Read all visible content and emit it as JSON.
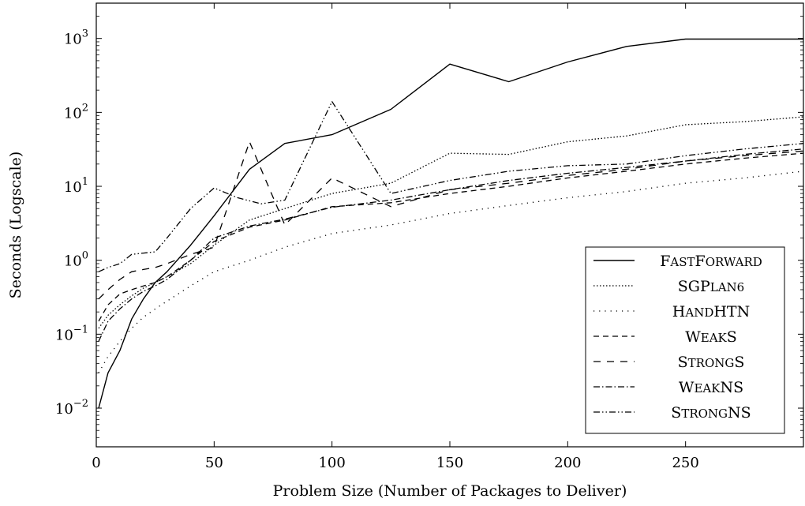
{
  "chart_data": {
    "type": "line",
    "title": "",
    "xlabel": "Problem Size (Number of Packages to Deliver)",
    "ylabel": "Seconds (Logscale)",
    "xlim": [
      0,
      300
    ],
    "ylim": [
      0.003,
      3000
    ],
    "yscale": "log",
    "grid": false,
    "legend_position": "bottom-right",
    "x_ticks": [
      0,
      50,
      100,
      150,
      200,
      250
    ],
    "x_tick_labels": [
      "0",
      "50",
      "100",
      "150",
      "200",
      "250"
    ],
    "y_ticks": [
      0.01,
      0.1,
      1,
      10,
      100,
      1000
    ],
    "y_tick_labels": [
      {
        "base": "10",
        "exp": "−2"
      },
      {
        "base": "10",
        "exp": "−1"
      },
      {
        "base": "10",
        "exp": "0"
      },
      {
        "base": "10",
        "exp": "1"
      },
      {
        "base": "10",
        "exp": "2"
      },
      {
        "base": "10",
        "exp": "3"
      }
    ],
    "series": [
      {
        "name": "FastForward",
        "dash": "",
        "width": 1.4,
        "x": [
          1,
          5,
          10,
          15,
          20,
          25,
          30,
          40,
          50,
          65,
          80,
          100,
          125,
          150,
          175,
          200,
          225,
          250,
          275,
          300
        ],
        "y": [
          0.01,
          0.03,
          0.06,
          0.16,
          0.3,
          0.5,
          0.7,
          1.6,
          4,
          17,
          38,
          50,
          110,
          450,
          260,
          480,
          780,
          980,
          980,
          980
        ]
      },
      {
        "name": "SGPlan6",
        "dash": "1.5,2.5",
        "width": 1.3,
        "x": [
          1,
          5,
          10,
          15,
          20,
          25,
          30,
          40,
          50,
          65,
          80,
          100,
          125,
          150,
          175,
          200,
          225,
          250,
          275,
          300
        ],
        "y": [
          0.12,
          0.18,
          0.25,
          0.33,
          0.42,
          0.5,
          0.6,
          0.9,
          1.6,
          3.5,
          5,
          8,
          11,
          28,
          27,
          40,
          48,
          68,
          75,
          87
        ]
      },
      {
        "name": "HandHTN",
        "dash": "1.2,6",
        "width": 1.3,
        "x": [
          1,
          5,
          10,
          15,
          20,
          25,
          30,
          40,
          50,
          65,
          80,
          100,
          125,
          150,
          175,
          200,
          225,
          250,
          275,
          300
        ],
        "y": [
          0.03,
          0.05,
          0.08,
          0.12,
          0.17,
          0.22,
          0.28,
          0.45,
          0.7,
          1.0,
          1.5,
          2.3,
          3,
          4.3,
          5.5,
          7,
          8.5,
          11,
          13,
          16
        ]
      },
      {
        "name": "WeakS",
        "dash": "7,5",
        "width": 1.3,
        "x": [
          1,
          5,
          10,
          15,
          20,
          25,
          30,
          40,
          50,
          65,
          80,
          100,
          125,
          150,
          175,
          200,
          225,
          250,
          275,
          300
        ],
        "y": [
          0.15,
          0.25,
          0.35,
          0.4,
          0.45,
          0.5,
          0.6,
          1.0,
          1.8,
          2.8,
          3.5,
          5.3,
          6,
          8,
          10,
          13,
          16,
          20,
          24,
          28
        ]
      },
      {
        "name": "StrongS",
        "dash": "9,8",
        "width": 1.3,
        "x": [
          1,
          5,
          10,
          15,
          20,
          25,
          30,
          40,
          50,
          65,
          80,
          100,
          125,
          150,
          175,
          200,
          225,
          250,
          275,
          300
        ],
        "y": [
          0.3,
          0.4,
          0.55,
          0.7,
          0.75,
          0.8,
          0.9,
          1.2,
          1.5,
          40,
          3,
          13,
          5.3,
          9,
          11,
          14,
          17,
          22,
          26,
          30
        ]
      },
      {
        "name": "WeakNS",
        "dash": "8,3,1.5,3",
        "width": 1.3,
        "x": [
          1,
          5,
          10,
          15,
          20,
          25,
          30,
          40,
          50,
          65,
          80,
          100,
          125,
          150,
          175,
          200,
          225,
          250,
          275,
          300
        ],
        "y": [
          0.08,
          0.15,
          0.22,
          0.3,
          0.38,
          0.45,
          0.55,
          1.0,
          2.0,
          2.9,
          3.6,
          5.2,
          6.5,
          9,
          12,
          15,
          18,
          22,
          27,
          32
        ]
      },
      {
        "name": "StrongNS",
        "dash": "8,3,1.5,3,1.5,3",
        "width": 1.3,
        "x": [
          1,
          5,
          10,
          15,
          20,
          25,
          30,
          40,
          50,
          60,
          70,
          80,
          100,
          125,
          150,
          175,
          200,
          225,
          250,
          275,
          300
        ],
        "y": [
          0.7,
          0.8,
          0.9,
          1.2,
          1.25,
          1.3,
          2,
          5,
          9.5,
          7,
          5.8,
          6.5,
          140,
          8,
          12,
          16,
          19,
          20,
          26,
          32,
          38
        ]
      }
    ],
    "legend_entries": [
      {
        "first": "F",
        "rest": "ast",
        "second": "F",
        "tail": "orward"
      },
      {
        "first": "SGP",
        "rest": "lan6",
        "second": "",
        "tail": ""
      },
      {
        "first": "H",
        "rest": "and",
        "second": "HTN",
        "tail": ""
      },
      {
        "first": "W",
        "rest": "eak",
        "second": "S",
        "tail": ""
      },
      {
        "first": "S",
        "rest": "trong",
        "second": "S",
        "tail": ""
      },
      {
        "first": "W",
        "rest": "eak",
        "second": "NS",
        "tail": ""
      },
      {
        "first": "S",
        "rest": "trong",
        "second": "NS",
        "tail": ""
      }
    ]
  }
}
